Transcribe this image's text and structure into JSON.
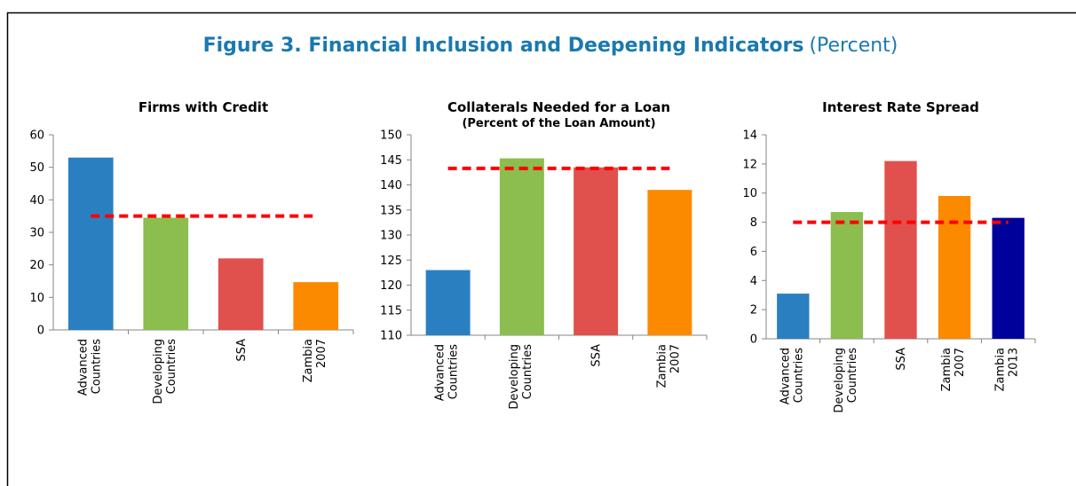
{
  "figure": {
    "title": "Figure 3.  Financial Inclusion and Deepening Indicators",
    "unit": "(Percent)"
  },
  "chart_data": [
    {
      "type": "bar",
      "title": "Firms with Credit",
      "categories": [
        "Advanced Countries",
        "Developing Countries",
        "SSA",
        "Zambia 2007"
      ],
      "values": [
        53,
        34.5,
        22,
        14.7
      ],
      "colors": [
        "#2a7fc1",
        "#8cbd4f",
        "#e0504c",
        "#fb8a00"
      ],
      "ylim": [
        0,
        60
      ],
      "yticks": [
        0,
        10,
        20,
        30,
        40,
        50,
        60
      ],
      "reference_line": {
        "value": 35,
        "color": "#ff0000"
      }
    },
    {
      "type": "bar",
      "title": "Collaterals Needed for a  Loan",
      "subtitle": "(Percent of the Loan Amount)",
      "categories": [
        "Advanced Countries",
        "Developing Countries",
        "SSA",
        "Zambia 2007"
      ],
      "values": [
        123,
        145.3,
        143.5,
        139
      ],
      "colors": [
        "#2a7fc1",
        "#8cbd4f",
        "#e0504c",
        "#fb8a00"
      ],
      "ylim": [
        110,
        150
      ],
      "yticks": [
        110,
        115,
        120,
        125,
        130,
        135,
        140,
        145,
        150
      ],
      "reference_line": {
        "value": 143.3,
        "color": "#ff0000"
      }
    },
    {
      "type": "bar",
      "title": "Interest Rate Spread",
      "categories": [
        "Advanced Countries",
        "Developing Countries",
        "SSA",
        "Zambia 2007",
        "Zambia 2013"
      ],
      "values": [
        3.1,
        8.7,
        12.2,
        9.8,
        8.3
      ],
      "colors": [
        "#2a7fc1",
        "#8cbd4f",
        "#e0504c",
        "#fb8a00",
        "#00009a"
      ],
      "ylim": [
        0,
        14
      ],
      "yticks": [
        0,
        2,
        4,
        6,
        8,
        10,
        12,
        14
      ],
      "reference_line": {
        "value": 8,
        "color": "#ff0000"
      }
    }
  ]
}
